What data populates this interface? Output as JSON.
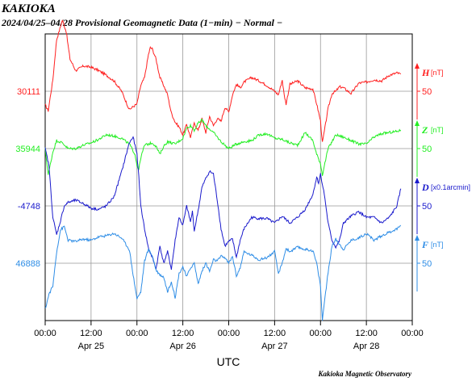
{
  "header": {
    "station": "KAKIOKA",
    "subtitle": "2024/04/25–04/28  Provisional Geomagnetic Data (1−min)  − Normal −"
  },
  "credit": "Kakioka Magnetic Observatory",
  "colors": {
    "H": "#ff2020",
    "Z": "#22ee22",
    "D": "#1a1acc",
    "F": "#2e8de6",
    "grid": "#999999",
    "frame": "#000000"
  },
  "chart_data": {
    "type": "line",
    "xlabel": "UTC",
    "x_range_hours": [
      0,
      96
    ],
    "x_tick_hours": [
      0,
      12,
      24,
      36,
      48,
      60,
      72,
      84,
      96
    ],
    "x_tick_labels": [
      "00:00",
      "12:00",
      "00:00",
      "12:00",
      "00:00",
      "12:00",
      "00:00",
      "12:00",
      "00:00"
    ],
    "day_labels": [
      {
        "hour": 12,
        "label": "Apr 25"
      },
      {
        "hour": 36,
        "label": "Apr 26"
      },
      {
        "hour": 60,
        "label": "Apr 27"
      },
      {
        "hour": 84,
        "label": "Apr 28"
      }
    ],
    "y_scale_nT_per_division": 50,
    "series": [
      {
        "key": "H",
        "name": "H",
        "unit": "[nT]",
        "base_value": "30111",
        "scale_label": "50",
        "x_hours": [
          0,
          0.8,
          2,
          3,
          4.5,
          5.5,
          6.5,
          8,
          9,
          10,
          12,
          14,
          16,
          18,
          20,
          22,
          24,
          25,
          26,
          27,
          27.5,
          28,
          29,
          30,
          31,
          32,
          33,
          34,
          35,
          36,
          37,
          38,
          39,
          40,
          41,
          42,
          43,
          44,
          45,
          46,
          47,
          48,
          49,
          50,
          51,
          52,
          54,
          56,
          58,
          60,
          61,
          62,
          62.5,
          63,
          64,
          66,
          68,
          70,
          71,
          72,
          72.5,
          73,
          74,
          75,
          76,
          77,
          78,
          80,
          82,
          84,
          86,
          88,
          90,
          92,
          93
        ],
        "values": [
          -12,
          -17,
          10,
          45,
          62,
          52,
          28,
          18,
          20,
          22,
          21,
          18,
          14,
          9,
          0,
          -16,
          -11,
          5,
          12,
          32,
          38,
          37,
          28,
          12,
          5,
          -3,
          -19,
          -27,
          -31,
          -38,
          -29,
          -40,
          -28,
          -34,
          -24,
          -36,
          -22,
          -30,
          -24,
          -26,
          -14,
          -18,
          -3,
          6,
          3,
          8,
          12,
          9,
          5,
          0,
          -3,
          10,
          -3,
          -11,
          6,
          9,
          3,
          2,
          -11,
          -26,
          -45,
          -35,
          -15,
          -2,
          0,
          4,
          3,
          -2,
          7,
          8,
          10,
          9,
          14,
          16,
          15
        ]
      },
      {
        "key": "Z",
        "name": "Z",
        "unit": "[nT]",
        "base_value": "35944",
        "scale_label": "50",
        "x_hours": [
          0,
          0.8,
          2,
          3,
          4.5,
          6,
          8,
          10,
          12,
          14,
          16,
          18,
          20,
          22,
          23.5,
          24,
          24.5,
          25,
          26,
          28,
          29,
          30,
          31,
          32,
          34,
          36,
          37,
          38,
          39,
          40,
          41,
          42,
          44,
          46,
          48,
          50,
          52,
          54,
          56,
          58,
          60,
          62,
          64,
          66,
          68,
          70,
          71,
          72,
          72.5,
          73,
          74,
          76,
          78,
          80,
          82,
          84,
          86,
          88,
          90,
          92,
          93
        ],
        "values": [
          0,
          -23,
          -3,
          7,
          5,
          0,
          0,
          3,
          5,
          8,
          12,
          11,
          9,
          4,
          -5,
          -15,
          -18,
          -8,
          3,
          5,
          2,
          -5,
          2,
          6,
          4,
          9,
          18,
          20,
          16,
          22,
          25,
          20,
          14,
          6,
          0,
          4,
          6,
          7,
          12,
          13,
          9,
          8,
          5,
          3,
          14,
          7,
          -5,
          -13,
          -23,
          -15,
          0,
          12,
          10,
          7,
          4,
          4,
          10,
          13,
          14,
          15,
          16
        ]
      },
      {
        "key": "D",
        "name": "D",
        "unit": "[x0.1arcmin]",
        "base_value": "-4748",
        "scale_label": "50",
        "x_hours": [
          0,
          1,
          2,
          3,
          4,
          5,
          6,
          8,
          10,
          12,
          14,
          16,
          18,
          20,
          22,
          23,
          24,
          24.5,
          25,
          26,
          27,
          28,
          29,
          30,
          31,
          32,
          33,
          34,
          35,
          36,
          37,
          38,
          38.5,
          39,
          40,
          41,
          42,
          43,
          44,
          45,
          46,
          47,
          48,
          49,
          50,
          51,
          52,
          54,
          56,
          58,
          60,
          62,
          64,
          66,
          68,
          70,
          71,
          71.5,
          72,
          73,
          74,
          75,
          76,
          77,
          78,
          80,
          82,
          84,
          86,
          88,
          90,
          92,
          93
        ],
        "values": [
          50,
          35,
          -10,
          -25,
          -13,
          0,
          3,
          5,
          2,
          -2,
          -3,
          0,
          8,
          30,
          55,
          60,
          45,
          25,
          0,
          -20,
          -37,
          -45,
          -55,
          -35,
          -50,
          -40,
          -55,
          -30,
          -10,
          -17,
          0,
          -14,
          -5,
          -22,
          -4,
          16,
          24,
          30,
          28,
          5,
          -20,
          -35,
          -31,
          -29,
          -45,
          -30,
          -20,
          -10,
          -11,
          -11,
          -15,
          -9,
          -15,
          -10,
          -3,
          10,
          25,
          20,
          28,
          10,
          -15,
          -30,
          -36,
          -30,
          -15,
          -9,
          -5,
          -10,
          -10,
          -15,
          -10,
          0,
          15
        ]
      },
      {
        "key": "F",
        "name": "F",
        "unit": "[nT]",
        "base_value": "46888",
        "scale_label": "50",
        "x_hours": [
          0,
          1,
          2,
          3,
          4,
          5,
          6,
          8,
          10,
          12,
          14,
          16,
          18,
          20,
          22,
          23,
          24,
          25,
          26,
          27,
          28,
          29,
          30,
          31,
          32,
          33,
          34,
          35,
          36,
          37,
          38,
          39,
          40,
          41,
          42,
          43,
          44,
          45,
          46,
          47,
          48,
          49,
          50,
          51,
          52,
          54,
          56,
          58,
          60,
          61,
          62,
          63,
          64,
          66,
          68,
          70,
          71,
          72,
          72.5,
          73,
          74,
          75,
          76,
          78,
          80,
          82,
          84,
          86,
          88,
          90,
          92,
          93
        ],
        "values": [
          -40,
          -27,
          -20,
          10,
          29,
          32,
          20,
          19,
          21,
          20,
          23,
          24,
          26,
          22,
          12,
          -10,
          -31,
          -25,
          2,
          12,
          7,
          -6,
          -10,
          -12,
          -25,
          -16,
          -30,
          -9,
          -3,
          -12,
          -4,
          0,
          -18,
          -7,
          0,
          -7,
          3,
          2,
          6,
          5,
          0,
          6,
          -11,
          -4,
          10,
          7,
          3,
          5,
          10,
          -9,
          0,
          13,
          10,
          14,
          12,
          11,
          0,
          -20,
          -50,
          -34,
          -8,
          15,
          21,
          12,
          20,
          22,
          26,
          20,
          24,
          27,
          30,
          33
        ]
      }
    ]
  }
}
